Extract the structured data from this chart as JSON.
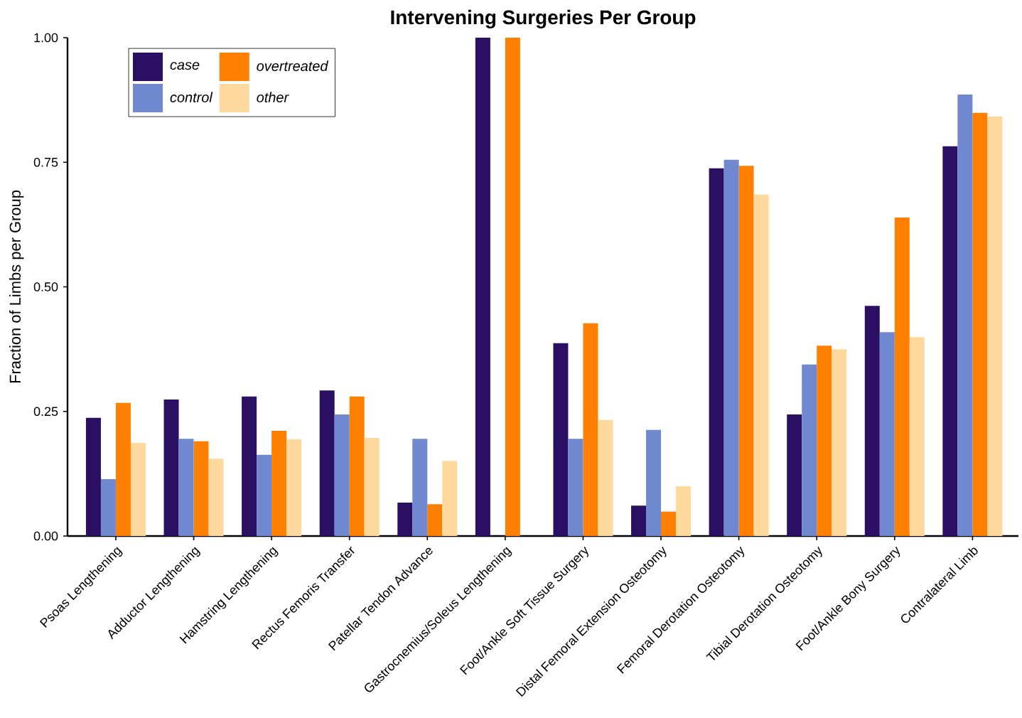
{
  "chart_data": {
    "type": "bar",
    "title": "Intervening Surgeries Per Group",
    "ylabel": "Fraction of Limbs per Group",
    "categories": [
      "Psoas Lengthening",
      "Adductor Lengthening",
      "Hamstring Lengthening",
      "Rectus Femoris Transfer",
      "Patellar Tendon Advance",
      "Gastrocnemius/Soleus Lengthening",
      "Foot/Ankle Soft Tissue Surgery",
      "Distal Femoral Extension Osteotomy",
      "Femoral Derotation Osteotomy",
      "Tibial Derotation Osteotomy",
      "Foot/Ankle Bony Surgery",
      "Contralateral Limb"
    ],
    "series": [
      {
        "name": "case",
        "color": "#2a0f63",
        "values": [
          0.237,
          0.274,
          0.28,
          0.292,
          0.067,
          1.0,
          0.387,
          0.061,
          0.738,
          0.244,
          0.462,
          0.782
        ]
      },
      {
        "name": "control",
        "color": "#6f88cf",
        "values": [
          0.114,
          0.195,
          0.163,
          0.244,
          0.195,
          0,
          0.195,
          0.213,
          0.755,
          0.344,
          0.409,
          0.886
        ]
      },
      {
        "name": "overtreated",
        "color": "#ff7f00",
        "values": [
          0.267,
          0.19,
          0.211,
          0.28,
          0.064,
          1.0,
          0.427,
          0.049,
          0.743,
          0.382,
          0.639,
          0.849
        ]
      },
      {
        "name": "other",
        "color": "#ffd89e",
        "values": [
          0.187,
          0.155,
          0.194,
          0.197,
          0.151,
          0,
          0.233,
          0.1,
          0.685,
          0.375,
          0.399,
          0.842
        ]
      }
    ],
    "ylim": [
      0,
      1
    ],
    "yticks": [
      {
        "value": 0,
        "label": "0.00"
      },
      {
        "value": 0.25,
        "label": "0.25"
      },
      {
        "value": 0.5,
        "label": "0.50"
      },
      {
        "value": 0.75,
        "label": "0.75"
      },
      {
        "value": 1,
        "label": "1.00"
      }
    ],
    "grid": false,
    "legend": "top left"
  }
}
